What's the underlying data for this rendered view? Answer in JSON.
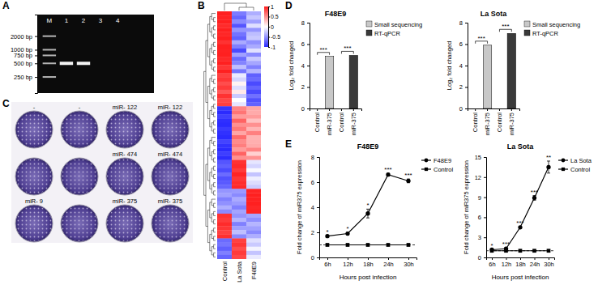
{
  "chart_data": [
    {
      "type": "gel",
      "panel": "A",
      "lanes": [
        "M",
        "1",
        "2",
        "3",
        "4"
      ],
      "bands": [
        [
          2000,
          1000,
          750,
          500,
          250
        ],
        [
          500
        ],
        [
          500
        ],
        [],
        []
      ],
      "log": "y",
      "ylim": [
        110,
        6000
      ],
      "yticks": [
        {
          "value": 2000,
          "label": "2000 bp"
        },
        {
          "value": 1000,
          "label": "1000 bp"
        },
        {
          "value": 750,
          "label": "750 bp"
        },
        {
          "value": 500,
          "label": "500 bp"
        },
        {
          "value": 250,
          "label": "250 bp"
        }
      ]
    },
    {
      "type": "heatmap",
      "panel": "B",
      "columns": [
        "Control",
        "La Sota",
        "F48E9"
      ],
      "cells": [
        [
          1,
          -0.62,
          -0.38
        ],
        [
          0.98,
          -0.71,
          -0.27
        ],
        [
          1,
          -0.55,
          -0.45
        ],
        [
          0.95,
          -0.8,
          -0.15
        ],
        [
          1,
          -0.5,
          -0.5
        ],
        [
          0.97,
          -0.66,
          -0.31
        ],
        [
          1,
          -0.74,
          -0.26
        ],
        [
          0.92,
          -0.4,
          -0.52
        ],
        [
          1,
          -0.6,
          -0.4
        ],
        [
          0.99,
          -0.85,
          -0.14
        ],
        [
          1,
          -0.45,
          -0.55
        ],
        [
          0.96,
          -0.7,
          -0.26
        ],
        [
          1,
          -0.58,
          -0.42
        ],
        [
          0.9,
          -0.3,
          -0.6
        ],
        [
          1,
          -0.65,
          -0.35
        ],
        [
          0.85,
          -0.1,
          -0.75
        ],
        [
          0.9,
          -0.2,
          -0.7
        ],
        [
          0.8,
          0.05,
          -0.85
        ],
        [
          0.88,
          -0.15,
          -0.73
        ],
        [
          0.75,
          0.1,
          -0.85
        ],
        [
          0.92,
          -0.25,
          -0.67
        ],
        [
          0.82,
          0,
          -0.82
        ],
        [
          0.86,
          -0.12,
          -0.74
        ],
        [
          -0.95,
          0.55,
          0.4
        ],
        [
          -1,
          0.62,
          0.38
        ],
        [
          -0.9,
          0.45,
          0.45
        ],
        [
          -0.98,
          0.7,
          0.28
        ],
        [
          -1,
          0.5,
          0.5
        ],
        [
          -0.93,
          0.6,
          0.33
        ],
        [
          -0.97,
          0.4,
          0.57
        ],
        [
          -1,
          0.66,
          0.34
        ],
        [
          -0.88,
          0.52,
          0.36
        ],
        [
          -0.96,
          0.58,
          0.38
        ],
        [
          -1,
          0.45,
          0.55
        ],
        [
          -0.91,
          0.7,
          0.21
        ],
        [
          -0.99,
          0.5,
          0.49
        ],
        [
          -0.8,
          0.92,
          -0.12
        ],
        [
          -0.75,
          0.95,
          -0.2
        ],
        [
          -0.85,
          0.88,
          -0.03
        ],
        [
          -0.7,
          0.98,
          -0.28
        ],
        [
          -0.82,
          0.9,
          -0.08
        ],
        [
          -0.78,
          0.94,
          -0.16
        ],
        [
          -0.72,
          0.96,
          -0.24
        ],
        [
          -0.5,
          -0.48,
          0.98
        ],
        [
          -0.45,
          -0.55,
          1
        ],
        [
          -0.6,
          -0.4,
          0.99
        ],
        [
          -0.52,
          -0.47,
          1
        ],
        [
          -0.38,
          -0.6,
          0.97
        ],
        [
          -0.55,
          -0.43,
          0.98
        ],
        [
          0.92,
          -0.5,
          -0.42
        ],
        [
          0.88,
          -0.35,
          -0.53
        ],
        [
          0.95,
          -0.6,
          -0.35
        ],
        [
          0.9,
          -0.45,
          -0.45
        ],
        [
          0.85,
          -0.3,
          -0.55
        ],
        [
          0.93,
          -0.55,
          -0.38
        ],
        [
          -0.7,
          0.85,
          -0.15
        ],
        [
          -0.65,
          0.9,
          -0.25
        ],
        [
          -0.75,
          0.8,
          -0.05
        ],
        [
          -0.6,
          0.88,
          -0.28
        ],
        [
          -0.72,
          0.82,
          -0.1
        ]
      ],
      "color_range": [
        -1,
        1
      ],
      "color_ticks": [
        1,
        0.5,
        0,
        -0.5,
        -1
      ]
    },
    {
      "type": "plate",
      "panel": "C",
      "wells": [
        [
          "-",
          "-",
          "miR- 122",
          "miR- 122"
        ],
        [
          null,
          null,
          "miR- 474",
          "miR- 474"
        ],
        [
          "miR- 9",
          null,
          "miR- 375",
          "miR- 375"
        ]
      ]
    },
    {
      "type": "bar",
      "panel": "D",
      "title": "F48E9",
      "y_label": "Log₂ fold changed",
      "categories": [
        "Control",
        "miR-375",
        "Control",
        "miR-375"
      ],
      "series": [
        {
          "name": "Small sequencing",
          "color": "#c8c8c8",
          "values": [
            0,
            4.85,
            null,
            null
          ],
          "significance": "***"
        },
        {
          "name": "RT-qPCR",
          "color": "#3a3a3a",
          "values": [
            null,
            null,
            0,
            4.95
          ],
          "significance": "***"
        }
      ],
      "ylim": [
        0,
        8
      ],
      "yticks": [
        0,
        2,
        4,
        6,
        8
      ],
      "legend": "right"
    },
    {
      "type": "bar",
      "title": "La Sota",
      "y_label": "Log₂ fold changed",
      "categories": [
        "Control",
        "miR-375",
        "Control",
        "miR-375"
      ],
      "series": [
        {
          "name": "Small sequencing",
          "color": "#c8c8c8",
          "values": [
            0,
            5.9,
            null,
            null
          ],
          "significance": "***"
        },
        {
          "name": "RT-qPCR",
          "color": "#3a3a3a",
          "values": [
            null,
            null,
            0,
            7.0
          ],
          "significance": "***"
        }
      ],
      "ylim": [
        0,
        8
      ],
      "yticks": [
        0,
        2,
        4,
        6,
        8
      ],
      "legend": "right"
    },
    {
      "type": "line",
      "panel": "E",
      "title": "F48E9",
      "x_label": "Hours post infection",
      "y_label": "Fold change of miR375 expression",
      "categories": [
        "6h",
        "12h",
        "18h",
        "24h",
        "30h"
      ],
      "series": [
        {
          "name": "F48E9",
          "color": "#000000",
          "marker": "circle",
          "values": [
            1.7,
            1.9,
            3.5,
            6.6,
            6.1
          ],
          "errors": [
            0.05,
            0.1,
            0.35,
            0.1,
            0.15
          ],
          "significance": [
            "*",
            "*",
            "*",
            "***",
            "***"
          ]
        },
        {
          "name": "Control",
          "color": "#000000",
          "marker": "square",
          "values": [
            1,
            1,
            1,
            1,
            1
          ],
          "errors": [
            0,
            0,
            0,
            0,
            0
          ]
        }
      ],
      "baseline": 1,
      "ylim": [
        0,
        8
      ],
      "yticks": [
        0,
        2,
        4,
        6,
        8
      ],
      "legend": "right"
    },
    {
      "type": "line",
      "title": "La Sota",
      "x_label": "Hours post infection",
      "y_label": "Fold change of miR375 expression",
      "categories": [
        "6h",
        "12h",
        "18h",
        "24h",
        "30h"
      ],
      "series": [
        {
          "name": "La Sota",
          "color": "#000000",
          "marker": "circle",
          "values": [
            1.15,
            1.3,
            4.5,
            8.9,
            13.5
          ],
          "errors": [
            0.05,
            0.1,
            0.15,
            0.35,
            0.9
          ],
          "significance": [
            "*",
            "***",
            "***",
            "***",
            "**"
          ]
        },
        {
          "name": "Control",
          "color": "#000000",
          "marker": "square",
          "values": [
            1,
            1,
            1,
            1,
            1
          ],
          "errors": [
            0,
            0,
            0,
            0,
            0
          ]
        }
      ],
      "baseline": 1,
      "ylim": [
        0,
        15
      ],
      "yticks": [
        0,
        3,
        6,
        9,
        12,
        15
      ],
      "legend": "right"
    }
  ]
}
